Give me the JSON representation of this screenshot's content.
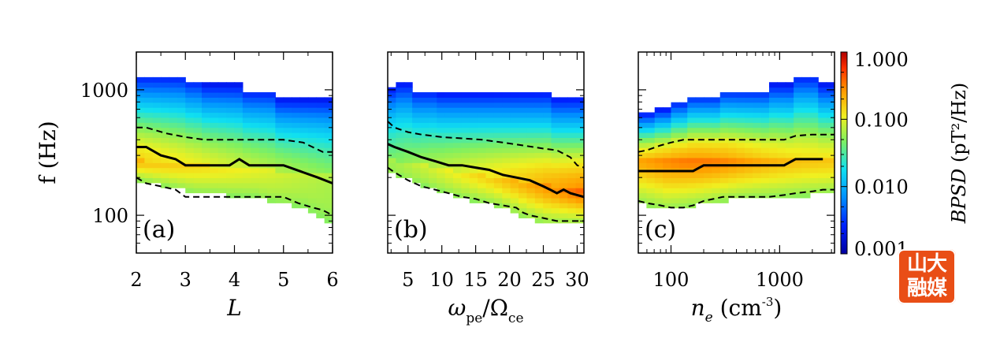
{
  "chart_data": [
    {
      "type": "heatmap",
      "panel_label": "(a)",
      "xlabel": "L",
      "ylabel": "f (Hz)",
      "xlim": [
        2,
        6
      ],
      "ylim": [
        50,
        2000
      ],
      "yscale": "log",
      "x_ticks": [
        "2",
        "3",
        "4",
        "5",
        "6"
      ],
      "y_ticks": [
        "100",
        "1000"
      ],
      "lines": [
        {
          "name": "",
          "style": "solid",
          "x": [
            2,
            2.2,
            2.5,
            2.8,
            3.0,
            3.3,
            3.6,
            3.9,
            4.1,
            4.3,
            4.6,
            5.0,
            5.4,
            5.7,
            6.0
          ],
          "y": [
            350,
            350,
            300,
            280,
            250,
            250,
            250,
            250,
            280,
            250,
            250,
            250,
            220,
            200,
            180
          ]
        },
        {
          "name": "",
          "style": "dashed",
          "x": [
            2,
            2.2,
            2.6,
            3.0,
            3.4,
            3.8,
            4.2,
            4.6,
            5.0,
            5.4,
            5.8,
            6.0
          ],
          "y": [
            500,
            500,
            450,
            420,
            400,
            400,
            400,
            400,
            400,
            380,
            320,
            320
          ]
        },
        {
          "name": "",
          "style": "dashed",
          "x": [
            2,
            2.2,
            2.5,
            2.8,
            3.0,
            3.4,
            3.8,
            4.2,
            4.6,
            5.0,
            5.3,
            5.6,
            5.8,
            6.0
          ],
          "y": [
            200,
            180,
            170,
            160,
            140,
            140,
            140,
            140,
            140,
            140,
            125,
            115,
            110,
            100
          ]
        }
      ]
    },
    {
      "type": "heatmap",
      "panel_label": "(b)",
      "xlabel": "ωpe/Ωce",
      "ylabel": "",
      "xlim": [
        2,
        31
      ],
      "ylim": [
        50,
        2000
      ],
      "yscale": "log",
      "x_ticks": [
        "5",
        "10",
        "15",
        "20",
        "25",
        "30"
      ],
      "y_ticks": [],
      "lines": [
        {
          "name": "",
          "style": "solid",
          "x": [
            2,
            3,
            5,
            7,
            9,
            11,
            13,
            15,
            17,
            19,
            21,
            23,
            25,
            26,
            27,
            28,
            29,
            31
          ],
          "y": [
            370,
            350,
            320,
            290,
            270,
            250,
            250,
            240,
            230,
            210,
            200,
            190,
            170,
            160,
            150,
            160,
            150,
            140
          ]
        },
        {
          "name": "",
          "style": "dashed",
          "x": [
            2,
            3,
            5,
            7,
            10,
            13,
            16,
            19,
            22,
            25,
            27,
            29,
            30,
            31
          ],
          "y": [
            560,
            500,
            460,
            440,
            420,
            410,
            400,
            380,
            360,
            340,
            330,
            290,
            250,
            240
          ]
        },
        {
          "name": "",
          "style": "dashed",
          "x": [
            2,
            3,
            5,
            7,
            9,
            11,
            13,
            15,
            17,
            19,
            21,
            22,
            23,
            25,
            27,
            29,
            31
          ],
          "y": [
            240,
            220,
            190,
            170,
            160,
            150,
            140,
            135,
            125,
            120,
            115,
            105,
            100,
            95,
            90,
            90,
            90
          ]
        }
      ]
    },
    {
      "type": "heatmap",
      "panel_label": "(c)",
      "xlabel": "ne (cm⁻³)",
      "ylabel": "",
      "xlim": [
        50,
        3200
      ],
      "ylim": [
        50,
        2000
      ],
      "yscale": "log",
      "xscale": "log",
      "x_ticks": [
        "100",
        "1000"
      ],
      "y_ticks": [],
      "lines": [
        {
          "name": "",
          "style": "solid",
          "x": [
            50,
            80,
            120,
            160,
            200,
            300,
            500,
            800,
            1100,
            1400,
            2000,
            2500
          ],
          "y": [
            225,
            225,
            225,
            225,
            250,
            250,
            250,
            250,
            250,
            280,
            280,
            280
          ]
        },
        {
          "name": "",
          "style": "dashed",
          "x": [
            50,
            60,
            80,
            100,
            130,
            160,
            200,
            300,
            500,
            800,
            1100,
            1400,
            2000,
            2500,
            3200
          ],
          "y": [
            320,
            330,
            360,
            380,
            400,
            400,
            400,
            400,
            400,
            400,
            400,
            430,
            440,
            440,
            440
          ]
        },
        {
          "name": "",
          "style": "dashed",
          "x": [
            50,
            60,
            80,
            100,
            130,
            160,
            200,
            300,
            500,
            800,
            1100,
            1400,
            2000,
            2500,
            3200
          ],
          "y": [
            130,
            125,
            120,
            115,
            115,
            120,
            130,
            140,
            140,
            140,
            145,
            150,
            155,
            160,
            160
          ]
        }
      ]
    }
  ],
  "colorbar": {
    "label": "BPSD (pT²/Hz)",
    "scale": "log",
    "range": [
      0.001,
      1.0
    ],
    "ticks": [
      "1.000",
      "0.100",
      "0.010",
      "0.001"
    ]
  },
  "watermark": {
    "line1": "山大",
    "line2": "融媒"
  }
}
